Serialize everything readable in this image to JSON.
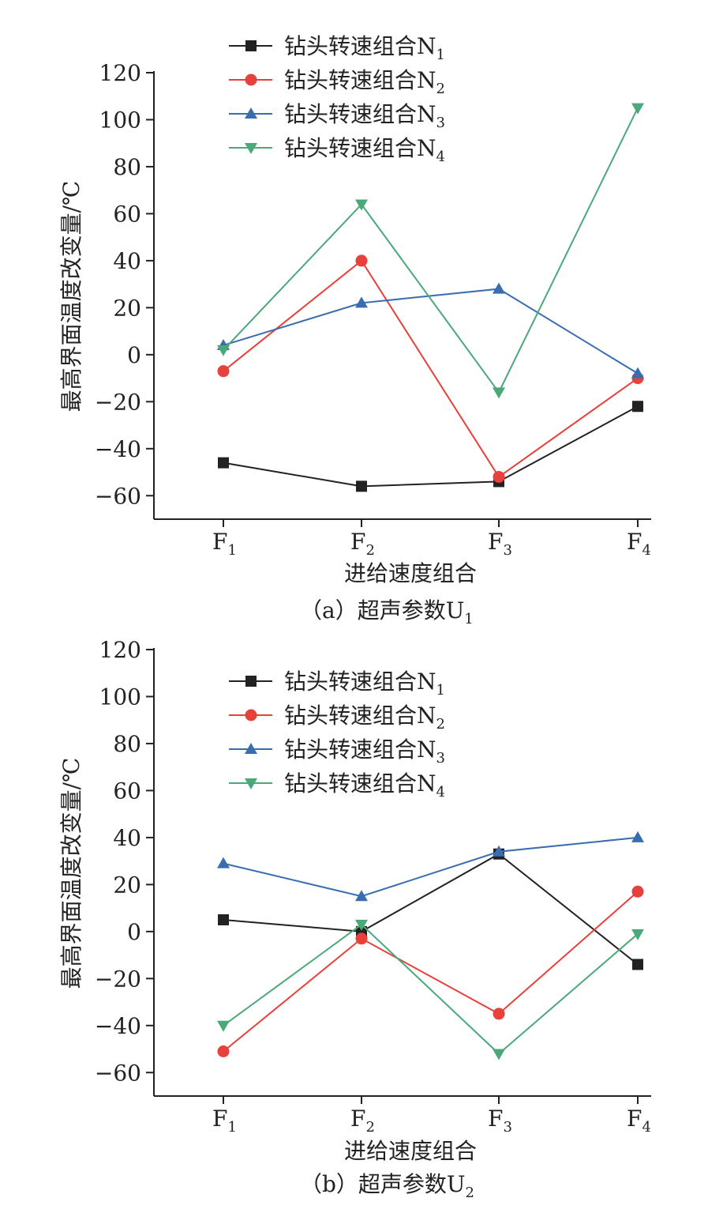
{
  "chart_data": [
    {
      "type": "line",
      "panel": "a",
      "caption": "（a）超声参数U",
      "caption_sub": "1",
      "xlabel": "进给速度组合",
      "ylabel": "最高界面温度改变量/℃",
      "ylim": [
        -70,
        120
      ],
      "yticks": [
        -60,
        -40,
        -20,
        0,
        20,
        40,
        60,
        80,
        100,
        120
      ],
      "categories": [
        "F",
        "F",
        "F",
        "F"
      ],
      "category_subs": [
        "1",
        "2",
        "3",
        "4"
      ],
      "legend_position": "top",
      "series": [
        {
          "name": "钻头转速组合N",
          "sub": "1",
          "color": "#222222",
          "marker": "square",
          "values": [
            -46,
            -56,
            -54,
            -22
          ]
        },
        {
          "name": "钻头转速组合N",
          "sub": "2",
          "color": "#e8403a",
          "marker": "circle",
          "values": [
            -7,
            40,
            -52,
            -10
          ]
        },
        {
          "name": "钻头转速组合N",
          "sub": "3",
          "color": "#3a6db0",
          "marker": "triangle-up",
          "values": [
            4,
            22,
            28,
            -8
          ]
        },
        {
          "name": "钻头转速组合N",
          "sub": "4",
          "color": "#4aa879",
          "marker": "triangle-down",
          "values": [
            2,
            64,
            -16,
            105
          ]
        }
      ]
    },
    {
      "type": "line",
      "panel": "b",
      "caption": "（b）超声参数U",
      "caption_sub": "2",
      "xlabel": "进给速度组合",
      "ylabel": "最高界面温度改变量/℃",
      "ylim": [
        -70,
        120
      ],
      "yticks": [
        -60,
        -40,
        -20,
        0,
        20,
        40,
        60,
        80,
        100,
        120
      ],
      "categories": [
        "F",
        "F",
        "F",
        "F"
      ],
      "category_subs": [
        "1",
        "2",
        "3",
        "4"
      ],
      "legend_position": "top",
      "series": [
        {
          "name": "钻头转速组合N",
          "sub": "1",
          "color": "#222222",
          "marker": "square",
          "values": [
            5,
            0,
            33,
            -14
          ]
        },
        {
          "name": "钻头转速组合N",
          "sub": "2",
          "color": "#e8403a",
          "marker": "circle",
          "values": [
            -51,
            -3,
            -35,
            17
          ]
        },
        {
          "name": "钻头转速组合N",
          "sub": "3",
          "color": "#3a6db0",
          "marker": "triangle-up",
          "values": [
            29,
            15,
            34,
            40
          ]
        },
        {
          "name": "钻头转速组合N",
          "sub": "4",
          "color": "#4aa879",
          "marker": "triangle-down",
          "values": [
            -40,
            3,
            -52,
            -1
          ]
        }
      ]
    }
  ]
}
